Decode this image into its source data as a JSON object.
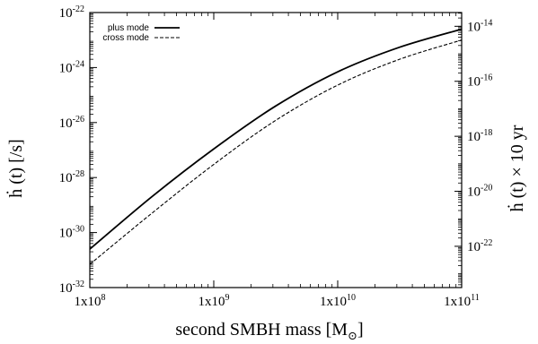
{
  "chart_data": {
    "type": "line",
    "x_scale": "log",
    "y_scale": "log",
    "xlim": [
      100000000,
      100000000000
    ],
    "ylim": [
      1e-32,
      1e-22
    ],
    "y2lim": [
      3.16e-24,
      3.16e-14
    ],
    "xlabel": {
      "main": "second SMBH mass [M",
      "sub": "⊙",
      "end": "]"
    },
    "ylabel": {
      "main": "ḣ (t) [/s]"
    },
    "y2label": {
      "main": "ḣ (t) × 10 yr"
    },
    "x_ticks": [
      {
        "value": 100000000,
        "base": "1x10",
        "exp": "8"
      },
      {
        "value": 1000000000,
        "base": "1x10",
        "exp": "9"
      },
      {
        "value": 10000000000,
        "base": "1x10",
        "exp": "10"
      },
      {
        "value": 100000000000,
        "base": "1x10",
        "exp": "11"
      }
    ],
    "y_ticks": [
      {
        "value": 1e-22,
        "base": "10",
        "exp": "-22"
      },
      {
        "value": 1e-24,
        "base": "10",
        "exp": "-24"
      },
      {
        "value": 1e-26,
        "base": "10",
        "exp": "-26"
      },
      {
        "value": 1e-28,
        "base": "10",
        "exp": "-28"
      },
      {
        "value": 1e-30,
        "base": "10",
        "exp": "-30"
      },
      {
        "value": 1e-32,
        "base": "10",
        "exp": "-32"
      }
    ],
    "y2_ticks": [
      {
        "value": 1e-14,
        "base": "10",
        "exp": "-14"
      },
      {
        "value": 1e-16,
        "base": "10",
        "exp": "-16"
      },
      {
        "value": 1e-18,
        "base": "10",
        "exp": "-18"
      },
      {
        "value": 1e-20,
        "base": "10",
        "exp": "-20"
      },
      {
        "value": 1e-22,
        "base": "10",
        "exp": "-22"
      }
    ],
    "legend_position": "top-left",
    "series": [
      {
        "name": "plus mode",
        "style": "solid",
        "color": "#000000",
        "x": [
          100000000,
          316000000,
          1000000000,
          3160000000,
          10000000000,
          31600000000,
          100000000000
        ],
        "y": [
          2.5e-31,
          2e-29,
          1.1e-27,
          4e-26,
          7e-25,
          5.5e-24,
          2.5e-23
        ]
      },
      {
        "name": "cross mode",
        "style": "dashed",
        "color": "#000000",
        "x": [
          100000000,
          316000000,
          1000000000,
          3160000000,
          10000000000,
          31600000000,
          100000000000
        ],
        "y": [
          7e-32,
          5e-30,
          3e-28,
          1.2e-26,
          2.3e-25,
          2e-24,
          1e-23
        ]
      }
    ]
  }
}
